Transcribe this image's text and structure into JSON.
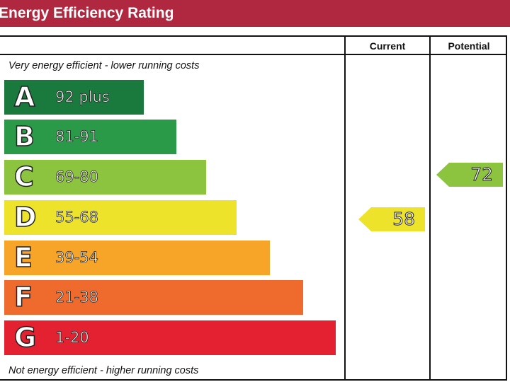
{
  "title": "Energy Efficiency Rating",
  "columns": {
    "current": "Current",
    "potential": "Potential"
  },
  "top_note": "Very energy efficient - lower running costs",
  "bottom_note": "Not energy efficient - higher running costs",
  "bands": [
    {
      "letter": "A",
      "range": "92 plus",
      "color": "#1a7a3e"
    },
    {
      "letter": "B",
      "range": "81-91",
      "color": "#2a9a48"
    },
    {
      "letter": "C",
      "range": "69-80",
      "color": "#8cc43f"
    },
    {
      "letter": "D",
      "range": "55-68",
      "color": "#ede32a"
    },
    {
      "letter": "E",
      "range": "39-54",
      "color": "#f7a528"
    },
    {
      "letter": "F",
      "range": "21-38",
      "color": "#ef6a2d"
    },
    {
      "letter": "G",
      "range": "1-20",
      "color": "#e32131"
    }
  ],
  "current": {
    "value": "58",
    "band": "D",
    "color": "#ede32a"
  },
  "potential": {
    "value": "72",
    "band": "C",
    "color": "#8cc43f"
  }
}
